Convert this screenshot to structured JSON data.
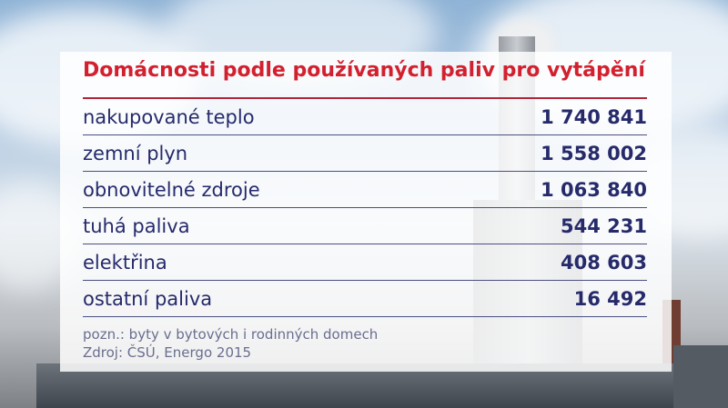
{
  "title": "Domácnosti podle používaných paliv pro vytápění",
  "rows": [
    {
      "label": "nakupované teplo",
      "value": "1 740 841"
    },
    {
      "label": "zemní plyn",
      "value": "1 558 002"
    },
    {
      "label": "obnovitelné zdroje",
      "value": "1 063 840"
    },
    {
      "label": "tuhá paliva",
      "value": "544 231"
    },
    {
      "label": "elektřina",
      "value": "408 603"
    },
    {
      "label": "ostatní paliva",
      "value": "16 492"
    }
  ],
  "note": "pozn.: byty v bytových i rodinných domech",
  "source": "Zdroj: ČSÚ, Energo 2015",
  "colors": {
    "title": "#d3202f",
    "text": "#262a6b",
    "note": "#6a6e8e"
  }
}
